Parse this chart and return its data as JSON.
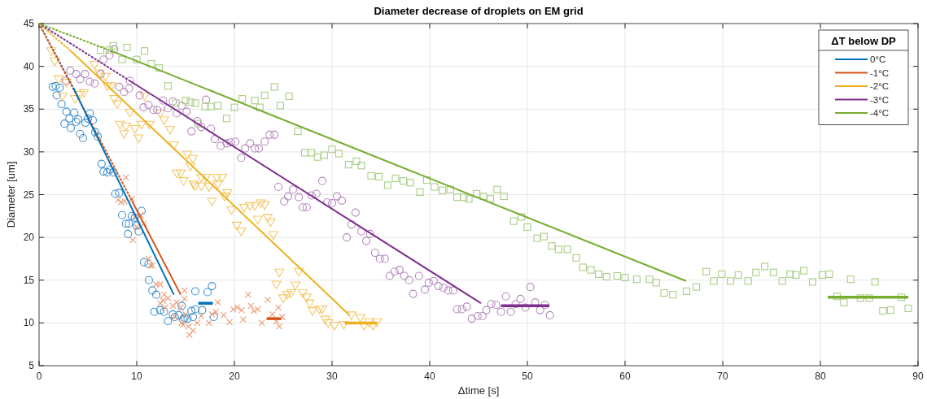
{
  "chart_data": {
    "type": "scatter",
    "title": "Diameter decrease of droplets on EM grid",
    "xlabel": "Δtime [s]",
    "ylabel": "Diameter [um]",
    "legend_title": "ΔT below DP",
    "legend": "top right",
    "grid": true,
    "xlim": [
      0,
      90
    ],
    "xticks": [
      0,
      10,
      20,
      30,
      40,
      50,
      60,
      70,
      80,
      90
    ],
    "ylim": [
      5,
      45
    ],
    "yticks": [
      5,
      10,
      15,
      20,
      25,
      30,
      35,
      40,
      45
    ],
    "series": [
      {
        "marker": "circle",
        "color": "#3d8fd0",
        "x": [
          1.4,
          1.7,
          2.1,
          1.8,
          2.3,
          2.6,
          2.8,
          3.1,
          3.25,
          3.6,
          3.8,
          4,
          4.2,
          4.5,
          4.75,
          5,
          5.2,
          5.5,
          5.75,
          6,
          6.4,
          6.6,
          7,
          7.25,
          7.6,
          7.8,
          8.2,
          8.5,
          8.9,
          9.2,
          9.1,
          9.5,
          9.8,
          10,
          10.2,
          10.5,
          10.75,
          11.2,
          11.25,
          11.6,
          12,
          11.8,
          12.4,
          12.8,
          13.2,
          13.7,
          13.9,
          14.3,
          14.75,
          15.2,
          15.6,
          15.75,
          14.6,
          14.9,
          16,
          16.7,
          17.25,
          17.7,
          17.9,
          16
        ],
        "values": [
          37.6,
          37.7,
          37.5,
          36.6,
          35.6,
          33.3,
          34.7,
          33.9,
          32.8,
          34.6,
          33.5,
          33.8,
          32.1,
          31.6,
          33.4,
          33.9,
          34.5,
          33.7,
          32.3,
          31.8,
          28.6,
          27.7,
          27.6,
          27.9,
          27.6,
          25.1,
          25.2,
          22.6,
          21.6,
          21.6,
          20.4,
          22.5,
          22.3,
          21.4,
          20.7,
          23.1,
          17.1,
          16.9,
          15,
          13.8,
          13.3,
          11.3,
          11.5,
          11.3,
          10.2,
          11,
          10.7,
          10.9,
          10.4,
          10.5,
          11.4,
          10.7,
          12,
          10.6,
          13.7,
          11.5,
          13.6,
          14.3,
          10.7,
          11.6
        ]
      },
      {
        "marker": "cross",
        "color": "#ec9a76",
        "x": [
          8.9,
          8.1,
          8.4,
          8.75,
          9.5,
          9.8,
          10.4,
          10.75,
          10,
          9.6,
          11.2,
          11.4,
          11.6,
          12,
          12.4,
          12.8,
          12.4,
          12.9,
          13.2,
          13.7,
          14.1,
          14.5,
          14.9,
          14.9,
          14.75,
          15.3,
          15.4,
          15.75,
          12.7,
          13.9,
          14.6,
          15,
          16.2,
          16.6,
          17.4,
          17.7,
          18.3,
          18.1,
          18.9,
          19.5,
          19.9,
          20.3,
          20.75,
          20.9,
          21.4,
          21.7,
          22,
          22.4,
          22.8,
          23.4,
          23.9,
          24.3,
          24.5,
          24.6,
          24.9
        ],
        "values": [
          27,
          24.4,
          24.1,
          24.2,
          24.5,
          22.4,
          22.6,
          21.6,
          21.2,
          19.7,
          17.5,
          16.7,
          16.7,
          14.5,
          14.5,
          13.3,
          12.3,
          11.8,
          12.9,
          12,
          12.4,
          11.8,
          13.8,
          12.8,
          9.8,
          9.6,
          8.6,
          9.1,
          12.6,
          10.7,
          10,
          11,
          10,
          10.8,
          10,
          11,
          12.4,
          11.3,
          10.9,
          10.1,
          11.6,
          11.8,
          11.5,
          10.4,
          13.3,
          12,
          11.4,
          11.6,
          10,
          12.7,
          11,
          10.2,
          11.8,
          9.6,
          10.7
        ]
      },
      {
        "marker": "triangle",
        "color": "#f3c868",
        "x": [
          1.25,
          1.6,
          2,
          2.4,
          2.8,
          3.7,
          4.2,
          4.6,
          5.7,
          6.2,
          6.8,
          7,
          7.4,
          7.7,
          8,
          8.3,
          8.7,
          8.9,
          9.3,
          9.8,
          10.2,
          10.5,
          10.8,
          11.3,
          12.4,
          12.8,
          13.4,
          13.8,
          14.1,
          14.5,
          14.8,
          15.2,
          15.5,
          15.8,
          15.75,
          16,
          16.6,
          17.1,
          16.6,
          17.4,
          18.2,
          18.75,
          18.3,
          19.3,
          17.7,
          19,
          19.7,
          21,
          21.6,
          22.1,
          22.7,
          23.1,
          20.25,
          20.7,
          22.4,
          23.4,
          23.7,
          24,
          24.6,
          24.3,
          25,
          25.4,
          25.8,
          26.25,
          26.6,
          27,
          27.4,
          27.7,
          28,
          28.7,
          29,
          29.3,
          29.6,
          30.25,
          31.2,
          32,
          32.9,
          33.25,
          33.75,
          34.2,
          34.6
        ],
        "values": [
          41.8,
          40.6,
          38.5,
          36.5,
          38.1,
          36.2,
          36.7,
          36.9,
          40.2,
          39.2,
          38.8,
          37.7,
          37.7,
          36.2,
          35.6,
          33.2,
          32.1,
          33,
          34.6,
          32.7,
          31.6,
          33.2,
          36.5,
          33.2,
          34.5,
          33.7,
          32.6,
          30.8,
          27.5,
          27.5,
          26.6,
          29.7,
          28.3,
          26.2,
          29.2,
          26,
          27,
          27,
          26,
          25.9,
          27,
          27,
          26.2,
          25.2,
          24.2,
          24.8,
          23.2,
          23.5,
          23.7,
          23.7,
          24,
          23.8,
          21.4,
          20.7,
          22.1,
          22.3,
          21.8,
          20.3,
          15.9,
          14.5,
          12.9,
          13.3,
          13.5,
          14.4,
          16,
          13.5,
          13,
          12.3,
          11.4,
          11.6,
          11.6,
          10.4,
          10,
          9.7,
          9.8,
          10.9,
          10.6,
          9.7,
          10.1,
          9.7,
          10.1
        ]
      },
      {
        "marker": "circle",
        "color": "#b486bd",
        "x": [
          2.7,
          3.2,
          3.8,
          4.2,
          4.7,
          5.2,
          5.7,
          6.3,
          6.6,
          7.2,
          7.7,
          8.2,
          8.7,
          9.2,
          9.3,
          10.3,
          10.7,
          11.2,
          11.7,
          12.1,
          12.7,
          13.2,
          13.7,
          14.1,
          14.6,
          15.1,
          15.6,
          16.2,
          16.6,
          17.1,
          17.6,
          18,
          18.6,
          19.2,
          19.6,
          20.1,
          20.7,
          21.1,
          21.6,
          22.1,
          22.5,
          23.1,
          23.6,
          24.1,
          24.5,
          25.1,
          25.5,
          26,
          26.6,
          27,
          27.4,
          27.9,
          28.4,
          29,
          29.5,
          30,
          30.5,
          31,
          31.5,
          32,
          32.4,
          33,
          33.5,
          33.9,
          34.4,
          34.9,
          35.4,
          35.9,
          36.4,
          36.9,
          37.4,
          37.9,
          38.3,
          38.9,
          39.5,
          39.9,
          40.4,
          40.9,
          41.4,
          41.9,
          42.4,
          42.8,
          43.3,
          43.8,
          44.3,
          44.9,
          45.4,
          45.8,
          46.3,
          46.8,
          47.3,
          47.8,
          48.3,
          48.8,
          49.3,
          49.8,
          50.3,
          50.8,
          51.3,
          51.8,
          52.3
        ],
        "values": [
          38.3,
          39.5,
          39.1,
          38.5,
          39.1,
          38.2,
          38,
          39.1,
          40.8,
          41.3,
          42,
          37.6,
          37,
          37.4,
          38.3,
          36.6,
          35.2,
          35.5,
          34.9,
          34.9,
          36,
          35.1,
          35.9,
          34.5,
          35.4,
          34.7,
          32.4,
          33.6,
          32.9,
          36.1,
          32.7,
          31.5,
          30.7,
          31,
          31.1,
          31.2,
          29.3,
          30.4,
          31,
          30.4,
          30.4,
          31.2,
          32,
          32,
          25.9,
          24.2,
          24.8,
          25.6,
          24.7,
          23.5,
          23.5,
          24.9,
          25.1,
          26.6,
          24.1,
          24,
          24.8,
          24.3,
          20,
          21.5,
          22.9,
          20.7,
          19.6,
          20.4,
          18.2,
          17.5,
          17.5,
          15.5,
          16,
          16.2,
          15.5,
          15,
          13.4,
          15.5,
          13.9,
          14.7,
          14.9,
          14.3,
          14.1,
          13.8,
          13.8,
          11.6,
          11.6,
          11.9,
          10.5,
          10.8,
          10.8,
          11.5,
          12.2,
          12.1,
          11.3,
          13.1,
          11.3,
          12.2,
          12.8,
          11.8,
          14.2,
          12.4,
          11.5,
          12.1,
          10.9
        ]
      },
      {
        "marker": "square",
        "color": "#a9cd86",
        "x": [
          6.3,
          7.2,
          7.6,
          8.5,
          9,
          10,
          10.8,
          11.5,
          12.3,
          13.2,
          14,
          15,
          15.5,
          16,
          16.3,
          17,
          17.6,
          18.3,
          19.2,
          20,
          20.8,
          22.1,
          22.6,
          23.1,
          24.1,
          24.7,
          25.6,
          26.5,
          27.2,
          27.9,
          28.5,
          29.2,
          30,
          30.7,
          31.7,
          32.5,
          33,
          34,
          34.8,
          35.7,
          36.5,
          37.3,
          38,
          39,
          39.7,
          40.5,
          41.3,
          42.1,
          42.8,
          43.5,
          44,
          44.8,
          45.5,
          46.2,
          46.9,
          47.6,
          48.6,
          49.4,
          50,
          51,
          51.7,
          52.5,
          53.2,
          54.1,
          55,
          55.7,
          56.5,
          57.3,
          58.1,
          59.2,
          60,
          61.2,
          62.5,
          63.2,
          64,
          64.9,
          66.3,
          67.3,
          68.3,
          69.1,
          69.9,
          70.8,
          71.6,
          72.6,
          73.4,
          74.3,
          75.2,
          76.1,
          76.9,
          77.5,
          78.3,
          79.2,
          80.2,
          80.9,
          83.1,
          85.6,
          81.7,
          82.4,
          84.1,
          85,
          86.4,
          87.2,
          88.3,
          89
        ],
        "values": [
          41.9,
          41.9,
          42.4,
          40.8,
          42.2,
          40.8,
          41.8,
          40.3,
          39.8,
          37.7,
          35.7,
          36,
          35.8,
          35.7,
          33.3,
          35.3,
          35.3,
          35.4,
          33.9,
          35.2,
          36.2,
          36,
          35.2,
          36.6,
          37.6,
          35.4,
          36.5,
          32.4,
          29.9,
          29.9,
          29.4,
          29.6,
          30.3,
          29.8,
          28.5,
          28.9,
          28.4,
          27.2,
          27.1,
          26.1,
          26.9,
          26.6,
          26.4,
          25.3,
          26.7,
          25.9,
          25.5,
          25.6,
          24.7,
          24.7,
          24.5,
          25.1,
          24.8,
          24.5,
          25.6,
          24.8,
          21.9,
          22.4,
          21.2,
          19.9,
          20.1,
          19,
          18.6,
          18.6,
          17.6,
          16.5,
          16.2,
          15.7,
          15.4,
          15.5,
          15.3,
          15.1,
          15.1,
          14.7,
          13.5,
          13.3,
          13.7,
          14.2,
          16,
          14.9,
          15.7,
          14.9,
          15.6,
          14.9,
          15.9,
          16.6,
          15.9,
          14.9,
          15.7,
          15.6,
          16.1,
          14.8,
          15.6,
          15.7,
          15.1,
          14.8,
          13.1,
          12.4,
          12.9,
          12.9,
          11.4,
          11.5,
          13,
          11.7
        ]
      },
      {
        "type": "line",
        "line_style": "dotted",
        "color": "#0072bd",
        "x": [
          0,
          3.5
        ],
        "values": [
          45,
          37.5
        ]
      },
      {
        "type": "line",
        "line_style": "dotted",
        "color": "#d95319",
        "x": [
          0,
          9.5
        ],
        "values": [
          45,
          24.3
        ]
      },
      {
        "type": "line",
        "line_style": "dotted",
        "color": "#edb120",
        "x": [
          0,
          3.25
        ],
        "values": [
          45,
          41.8
        ]
      },
      {
        "type": "line",
        "line_style": "dotted",
        "color": "#7e2f8e",
        "x": [
          0,
          9.3
        ],
        "values": [
          45,
          38.3
        ]
      },
      {
        "type": "line",
        "line_style": "dotted",
        "color": "#77ac30",
        "x": [
          0,
          7.4
        ],
        "values": [
          45,
          41.8
        ]
      },
      {
        "type": "line",
        "line_style": "solid",
        "name": "0°C",
        "color": "#0072bd",
        "x": [
          3.5,
          13.8
        ],
        "values": [
          37.5,
          13.3
        ]
      },
      {
        "type": "line",
        "line_style": "solid",
        "name": "-1°C",
        "color": "#d95319",
        "x": [
          9.5,
          14.5
        ],
        "values": [
          24.3,
          13.3
        ]
      },
      {
        "type": "line",
        "line_style": "solid",
        "name": "-2°C",
        "color": "#edb120",
        "x": [
          3.25,
          31.8
        ],
        "values": [
          41.8,
          10.9
        ]
      },
      {
        "type": "line",
        "line_style": "solid",
        "name": "-3°C",
        "color": "#7e2f8e",
        "x": [
          9.3,
          45.25
        ],
        "values": [
          38.3,
          12.3
        ]
      },
      {
        "type": "line",
        "line_style": "solid",
        "name": "-4°C",
        "color": "#77ac30",
        "x": [
          7.4,
          66.25
        ],
        "values": [
          41.8,
          14.9
        ]
      },
      {
        "type": "line",
        "line_style": "solid",
        "color": "#0072bd",
        "x": [
          16.3,
          17.8
        ],
        "values": [
          12.3,
          12.3
        ]
      },
      {
        "type": "line",
        "line_style": "solid",
        "color": "#d95319",
        "x": [
          23.3,
          24.8
        ],
        "values": [
          10.5,
          10.5
        ]
      },
      {
        "type": "line",
        "line_style": "solid",
        "color": "#edb120",
        "x": [
          31.3,
          34.6
        ],
        "values": [
          10,
          10
        ]
      },
      {
        "type": "line",
        "line_style": "solid",
        "color": "#7e2f8e",
        "x": [
          47.3,
          52.25
        ],
        "values": [
          12,
          12
        ]
      },
      {
        "type": "line",
        "line_style": "solid",
        "color": "#77ac30",
        "x": [
          80.75,
          89
        ],
        "values": [
          13,
          13
        ]
      }
    ]
  }
}
